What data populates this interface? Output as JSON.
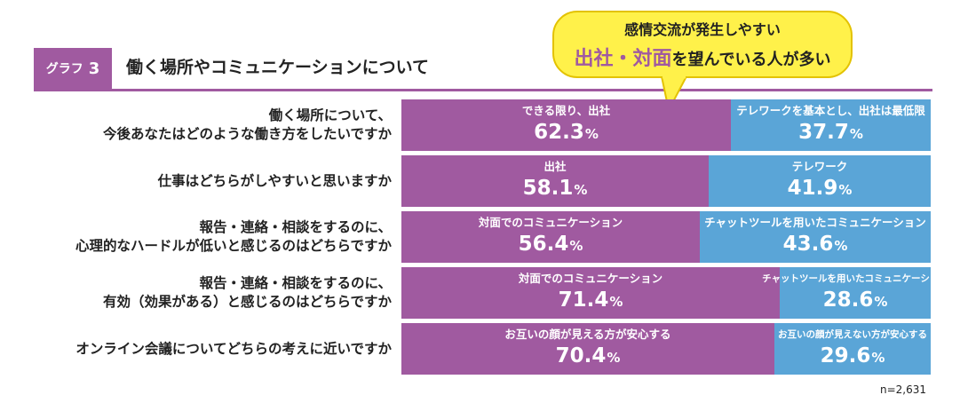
{
  "header": {
    "badge_label": "グラフ",
    "badge_number": "3",
    "title": "働く場所やコミュニケーションについて"
  },
  "callout": {
    "line1": "感情交流が発生しやすい",
    "line2_highlight": "出社・対面",
    "line2_rest": "を望んでいる人が多い"
  },
  "colors": {
    "purple": "#a05aa0",
    "blue": "#5aa5d7",
    "callout_yellow": "#fff14a"
  },
  "chart_data": {
    "type": "bar",
    "orientation": "horizontal-stacked-100",
    "unit": "%",
    "rows": [
      {
        "question": [
          "働く場所について、",
          "今後あなたはどのような働き方をしたいですか"
        ],
        "left": {
          "label": "できる限り、出社",
          "value": 62.3
        },
        "right": {
          "label": "テレワークを基本とし、出社は最低限",
          "value": 37.7
        }
      },
      {
        "question": [
          "仕事はどちらがしやすいと思いますか"
        ],
        "left": {
          "label": "出社",
          "value": 58.1
        },
        "right": {
          "label": "テレワーク",
          "value": 41.9
        }
      },
      {
        "question": [
          "報告・連絡・相談をするのに、",
          "心理的なハードルが低いと感じるのはどちらですか"
        ],
        "left": {
          "label": "対面でのコミュニケーション",
          "value": 56.4
        },
        "right": {
          "label": "チャットツールを用いたコミュニケーション",
          "value": 43.6
        }
      },
      {
        "question": [
          "報告・連絡・相談をするのに、",
          "有効（効果がある）と感じるのはどちらですか"
        ],
        "left": {
          "label": "対面でのコミュニケーション",
          "value": 71.4
        },
        "right": {
          "label": "チャットツールを用いたコミュニケーション",
          "value": 28.6
        }
      },
      {
        "question": [
          "オンライン会議についてどちらの考えに近いですか"
        ],
        "left": {
          "label": "お互いの顔が見える方が安心する",
          "value": 70.4
        },
        "right": {
          "label": "お互いの顔が見えない方が安心する",
          "value": 29.6
        }
      }
    ]
  },
  "footnote": "n=2,631"
}
